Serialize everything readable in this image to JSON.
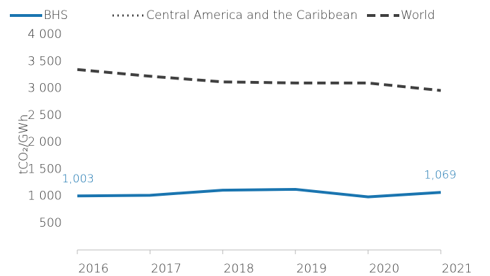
{
  "chart_data": {
    "type": "line",
    "y_label": "tCO₂/GWh",
    "x": [
      "2016",
      "2017",
      "2018",
      "2019",
      "2020",
      "2021"
    ],
    "series": [
      {
        "name": "BHS",
        "color": "#1a75b0",
        "style": "solid",
        "values": [
          1003,
          1015,
          1110,
          1125,
          985,
          1069
        ],
        "value_labels": [
          "1,003",
          null,
          null,
          null,
          null,
          "1,069"
        ]
      },
      {
        "name": "Central America and the Caribbean",
        "color": "#404040",
        "style": "dotted",
        "values": [
          null,
          null,
          null,
          null,
          null,
          null
        ]
      },
      {
        "name": "World",
        "color": "#404040",
        "style": "dashed",
        "values": [
          3350,
          3225,
          3120,
          3100,
          3100,
          2960
        ]
      }
    ],
    "ylim": [
      0,
      4000
    ],
    "yticks": [
      {
        "value": 500,
        "label": "500"
      },
      {
        "value": 1000,
        "label": "1 000"
      },
      {
        "value": 1500,
        "label": "1 500"
      },
      {
        "value": 2000,
        "label": "2 000"
      },
      {
        "value": 2500,
        "label": "2 500"
      },
      {
        "value": 3000,
        "label": "3 000"
      },
      {
        "value": 3500,
        "label": "3 500"
      },
      {
        "value": 4000,
        "label": "4 000"
      }
    ],
    "legend": "top"
  }
}
